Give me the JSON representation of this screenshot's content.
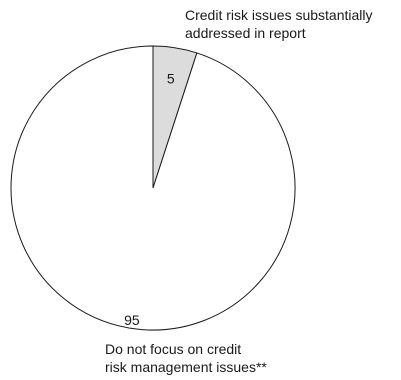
{
  "chart_data": {
    "type": "pie",
    "title": "",
    "slices": [
      {
        "value": 5,
        "value_label": "5",
        "label_lines": [
          "Credit risk issues substantially",
          "addressed in report"
        ],
        "color": "#dcdcdc"
      },
      {
        "value": 95,
        "value_label": "95",
        "label_lines": [
          "Do not focus on credit",
          "risk management issues**"
        ],
        "color": "#ffffff"
      }
    ],
    "start_angle_deg": 0,
    "direction": "clockwise",
    "edge_color": "#1a1a1a",
    "legend": "none"
  }
}
